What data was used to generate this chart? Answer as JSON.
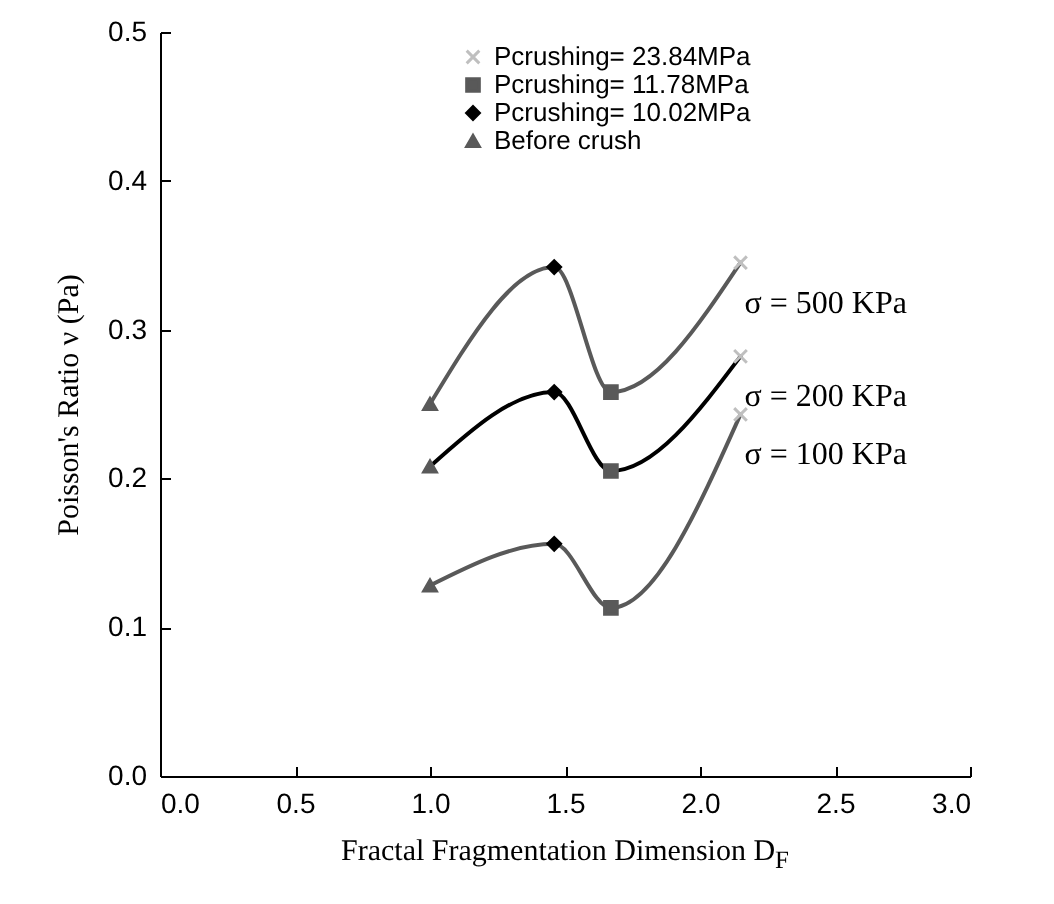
{
  "chart_data": {
    "type": "line",
    "xlabel": "Fractal Fragmentation Dimension D$_{F}$",
    "ylabel": "Poisson's Ratio  ν (Pa)",
    "xlim": [
      0,
      3
    ],
    "xticks": [
      {
        "value": 0,
        "label": "0.0"
      },
      {
        "value": 0.5,
        "label": "0.5"
      },
      {
        "value": 1,
        "label": "1.0"
      },
      {
        "value": 1.5,
        "label": "1.5"
      },
      {
        "value": 2,
        "label": "2.0"
      },
      {
        "value": 2.5,
        "label": "2.5"
      },
      {
        "value": 3,
        "label": "3.0"
      }
    ],
    "ylim": [
      0,
      0.5
    ],
    "yticks": [
      {
        "value": 0,
        "label": "0.0"
      },
      {
        "value": 0.1,
        "label": "0.1"
      },
      {
        "value": 0.2,
        "label": "0.2"
      },
      {
        "value": 0.3,
        "label": "0.3"
      },
      {
        "value": 0.4,
        "label": "0.4"
      },
      {
        "value": 0.5,
        "label": "0.5"
      }
    ],
    "grid": false,
    "legend": "top",
    "series": [
      {
        "marker": "none",
        "color": "#595959",
        "x": [
          1,
          1.46,
          1.67,
          2.15
        ],
        "values": [
          0.25,
          0.342,
          0.258,
          0.345
        ]
      },
      {
        "marker": "none",
        "color": "#000000",
        "x": [
          1,
          1.46,
          1.67,
          2.15
        ],
        "values": [
          0.208,
          0.258,
          0.205,
          0.282
        ]
      },
      {
        "marker": "none",
        "color": "#595959",
        "x": [
          1,
          1.46,
          1.67,
          2.15
        ],
        "values": [
          0.128,
          0.156,
          0.113,
          0.243
        ]
      },
      {
        "type": "scatter",
        "marker": "cross",
        "name": "Pcrushing= 23.84MPa",
        "color": "#bfbfbf",
        "x": [
          2.15,
          2.15,
          2.15
        ],
        "values": [
          0.345,
          0.282,
          0.243
        ]
      },
      {
        "type": "scatter",
        "marker": "square",
        "name": "Pcrushing= 11.78MPa",
        "color": "#595959",
        "x": [
          1.67,
          1.67,
          1.67
        ],
        "values": [
          0.258,
          0.205,
          0.113
        ]
      },
      {
        "type": "scatter",
        "marker": "diamond",
        "name": "Pcrushing= 10.02MPa",
        "color": "#000000",
        "x": [
          1.46,
          1.46,
          1.46
        ],
        "values": [
          0.342,
          0.258,
          0.156
        ]
      },
      {
        "type": "scatter",
        "marker": "triangle",
        "name": "Before crush",
        "color": "#595959",
        "x": [
          1,
          1,
          1
        ],
        "values": [
          0.25,
          0.208,
          0.128
        ]
      }
    ],
    "annotations": [
      "σ = 500 KPa",
      "σ = 200 KPa",
      "σ = 100 KPa"
    ]
  }
}
